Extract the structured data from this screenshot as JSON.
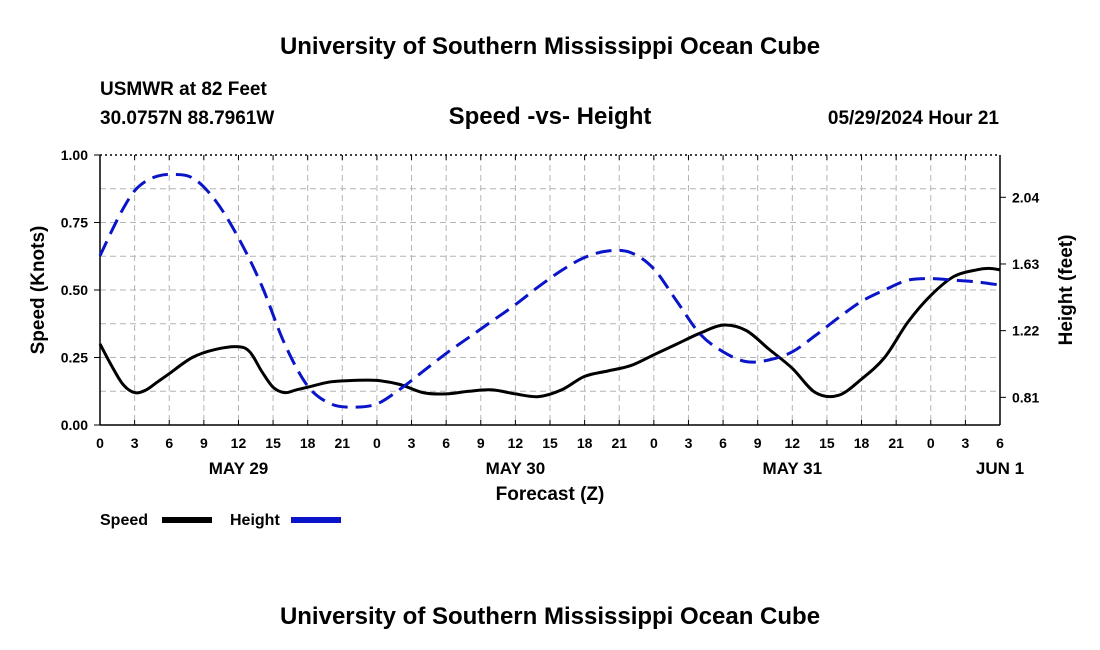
{
  "chart_data": {
    "type": "line",
    "title": "University of Southern Mississippi Ocean Cube",
    "footer_title": "University of Southern Mississippi Ocean Cube",
    "station": "USMWR at 82 Feet",
    "location": "30.0757N  88.7961W",
    "subtitle": "Speed -vs- Height",
    "timestamp": "05/29/2024 Hour 21",
    "xlabel": "Forecast (Z)",
    "ylabel_left": "Speed (Knots)",
    "ylabel_right": "Height (feet)",
    "x_hours_range": [
      0,
      78
    ],
    "x_tick_labels": [
      "0",
      "3",
      "6",
      "9",
      "12",
      "15",
      "18",
      "21",
      "0",
      "3",
      "6",
      "9",
      "12",
      "15",
      "18",
      "21",
      "0",
      "3",
      "6",
      "9",
      "12",
      "15",
      "18",
      "21",
      "0",
      "3",
      "6"
    ],
    "x_date_labels": [
      {
        "label": "MAY 29",
        "hour": 12
      },
      {
        "label": "MAY 30",
        "hour": 36
      },
      {
        "label": "MAY 31",
        "hour": 60
      },
      {
        "label": "JUN 1",
        "hour": 78
      }
    ],
    "ylim_left": [
      0,
      1
    ],
    "yticks_left": [
      "0.00",
      "0.25",
      "0.50",
      "0.75",
      "1.00"
    ],
    "ylim_right": [
      0.64,
      2.3
    ],
    "yticks_right": [
      "0.81",
      "1.22",
      "1.63",
      "2.04"
    ],
    "grid": true,
    "legend": {
      "position": "bottom-left",
      "speed_label": "Speed",
      "height_label": "Height"
    },
    "colors": {
      "speed": "#000000",
      "height": "#0a14c8",
      "grid": "#b4b4b4"
    },
    "series": [
      {
        "name": "Speed",
        "axis": "left",
        "style": "solid",
        "x": [
          0,
          1,
          2,
          3,
          4,
          5,
          6,
          8,
          10,
          12,
          13,
          14,
          15,
          16,
          17,
          18,
          20,
          22,
          24,
          26,
          28,
          30,
          32,
          34,
          36,
          38,
          40,
          42,
          44,
          46,
          48,
          50,
          52,
          54,
          56,
          58,
          60,
          62,
          64,
          66,
          68,
          70,
          72,
          74,
          76,
          77,
          78
        ],
        "values": [
          0.3,
          0.22,
          0.15,
          0.12,
          0.13,
          0.16,
          0.19,
          0.25,
          0.28,
          0.29,
          0.27,
          0.2,
          0.14,
          0.12,
          0.13,
          0.14,
          0.16,
          0.165,
          0.165,
          0.15,
          0.12,
          0.115,
          0.125,
          0.13,
          0.115,
          0.105,
          0.13,
          0.18,
          0.2,
          0.22,
          0.26,
          0.3,
          0.34,
          0.37,
          0.35,
          0.28,
          0.21,
          0.12,
          0.11,
          0.17,
          0.25,
          0.38,
          0.48,
          0.55,
          0.575,
          0.58,
          0.575
        ]
      },
      {
        "name": "Height",
        "axis": "right",
        "style": "dashed",
        "x": [
          0,
          1,
          2,
          3,
          4,
          5,
          6,
          8,
          10,
          12,
          14,
          16,
          18,
          20,
          22,
          24,
          26,
          28,
          30,
          32,
          34,
          36,
          38,
          40,
          42,
          44,
          46,
          48,
          50,
          52,
          54,
          56,
          58,
          60,
          62,
          64,
          66,
          68,
          70,
          72,
          74,
          76,
          78
        ],
        "values": [
          1.68,
          1.83,
          1.97,
          2.08,
          2.14,
          2.17,
          2.18,
          2.16,
          2.02,
          1.79,
          1.5,
          1.14,
          0.88,
          0.77,
          0.75,
          0.77,
          0.86,
          0.97,
          1.08,
          1.18,
          1.28,
          1.38,
          1.49,
          1.59,
          1.67,
          1.71,
          1.7,
          1.6,
          1.4,
          1.2,
          1.09,
          1.03,
          1.04,
          1.09,
          1.19,
          1.3,
          1.4,
          1.47,
          1.53,
          1.54,
          1.53,
          1.52,
          1.5
        ]
      }
    ]
  }
}
